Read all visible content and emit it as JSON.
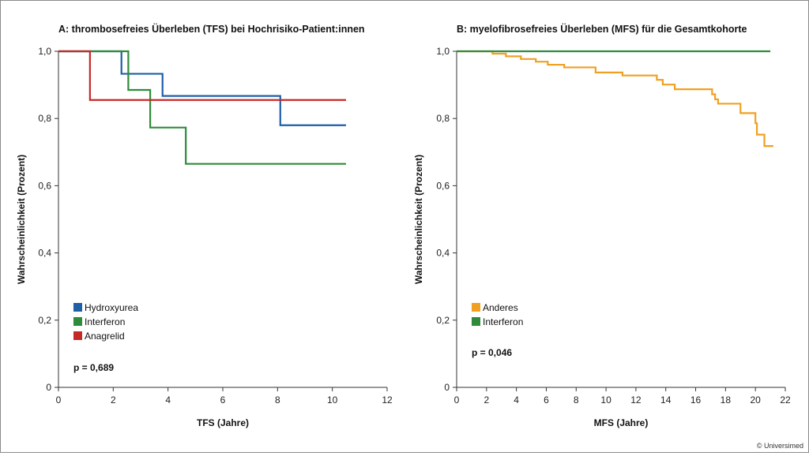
{
  "copyright": "© Universimed",
  "chart_data": [
    {
      "type": "line",
      "step": true,
      "title": "A: thrombosefreies Überleben (TFS) bei Hochrisiko-Patient:innen",
      "xlabel": "TFS (Jahre)",
      "ylabel": "Wahrscheinlichkeit (Prozent)",
      "xlim": [
        0,
        12
      ],
      "ylim": [
        0,
        1
      ],
      "xticks": [
        0,
        2,
        4,
        6,
        8,
        10,
        12
      ],
      "yticks": [
        0,
        0.2,
        0.4,
        0.6,
        0.8,
        1.0
      ],
      "xtick_labels": [
        "0",
        "2",
        "4",
        "6",
        "8",
        "10",
        "12"
      ],
      "ytick_labels": [
        "0",
        "0,2",
        "0,4",
        "0,6",
        "0,8",
        "1,0"
      ],
      "legend_position": "bottom-left",
      "annotation": "p = 0,689",
      "series": [
        {
          "name": "Hydroxyurea",
          "color": "#1f5fa8",
          "x": [
            0,
            2.3,
            3.8,
            8.1,
            10.5
          ],
          "y": [
            1.0,
            0.933,
            0.867,
            0.78,
            0.78
          ]
        },
        {
          "name": "Interferon",
          "color": "#2e8b3a",
          "x": [
            0,
            2.55,
            3.35,
            4.65,
            10.5
          ],
          "y": [
            1.0,
            0.885,
            0.773,
            0.665,
            0.665
          ]
        },
        {
          "name": "Anagrelid",
          "color": "#c62828",
          "x": [
            0,
            1.15,
            10.5
          ],
          "y": [
            1.0,
            0.855,
            0.855
          ]
        }
      ]
    },
    {
      "type": "line",
      "step": true,
      "title": "B: myelofibrosefreies Überleben (MFS) für die Gesamtkohorte",
      "xlabel": "MFS (Jahre)",
      "ylabel": "Wahrscheinlichkeit (Prozent)",
      "xlim": [
        0,
        22
      ],
      "ylim": [
        0,
        1
      ],
      "xticks": [
        0,
        2,
        4,
        6,
        8,
        10,
        12,
        14,
        16,
        18,
        20,
        22
      ],
      "yticks": [
        0,
        0.2,
        0.4,
        0.6,
        0.8,
        1.0
      ],
      "xtick_labels": [
        "0",
        "2",
        "4",
        "6",
        "8",
        "10",
        "12",
        "14",
        "16",
        "18",
        "20",
        "22"
      ],
      "ytick_labels": [
        "0",
        "0,2",
        "0,4",
        "0,6",
        "0,8",
        "1,0"
      ],
      "legend_position": "bottom-left",
      "annotation": "p = 0,046",
      "series": [
        {
          "name": "Anderes",
          "color": "#f0a020",
          "x": [
            0,
            2.4,
            3.3,
            4.3,
            5.3,
            6.1,
            7.2,
            9.3,
            11.1,
            13.4,
            13.8,
            14.6,
            17.1,
            17.3,
            17.5,
            19.0,
            20.0,
            20.1,
            20.6,
            21.2
          ],
          "y": [
            1.0,
            0.993,
            0.985,
            0.977,
            0.969,
            0.96,
            0.952,
            0.937,
            0.928,
            0.915,
            0.901,
            0.887,
            0.872,
            0.857,
            0.844,
            0.816,
            0.786,
            0.752,
            0.718,
            0.718
          ]
        },
        {
          "name": "Interferon",
          "color": "#2e8b3a",
          "x": [
            0,
            21.0
          ],
          "y": [
            1.0,
            1.0
          ]
        }
      ]
    }
  ]
}
